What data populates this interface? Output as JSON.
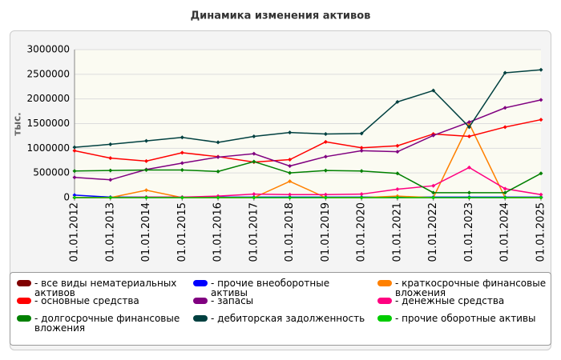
{
  "chart_data": {
    "type": "line",
    "title": "Динамика изменения активов",
    "y_label": "тыс.",
    "categories": [
      "01.01.2012",
      "01.01.2013",
      "01.01.2014",
      "01.01.2015",
      "01.01.2016",
      "01.01.2017",
      "01.01.2018",
      "01.01.2019",
      "01.01.2020",
      "01.01.2021",
      "01.01.2022",
      "01.01.2023",
      "01.01.2024",
      "01.01.2025"
    ],
    "ylim": [
      0,
      3000000
    ],
    "yticks": [
      0,
      500000,
      1000000,
      1500000,
      2000000,
      2500000,
      3000000
    ],
    "grid": true,
    "series": [
      {
        "name": "- все виды нематериальных активов",
        "color": "#800000",
        "values": [
          0,
          0,
          0,
          0,
          0,
          0,
          0,
          0,
          0,
          0,
          0,
          0,
          0,
          0
        ]
      },
      {
        "name": "- прочие внеоборотные активы",
        "color": "#0000ff",
        "values": [
          50000,
          10000,
          10000,
          10000,
          10000,
          10000,
          10000,
          10000,
          10000,
          10000,
          10000,
          10000,
          10000,
          10000
        ]
      },
      {
        "name": "- краткосрочные финансовые вложения",
        "color": "#ff8000",
        "values": [
          0,
          0,
          150000,
          0,
          0,
          0,
          330000,
          0,
          0,
          30000,
          0,
          1500000,
          0,
          0
        ]
      },
      {
        "name": "- основные средства",
        "color": "#ff0000",
        "values": [
          950000,
          800000,
          740000,
          910000,
          830000,
          720000,
          770000,
          1130000,
          1010000,
          1050000,
          1290000,
          1240000,
          1430000,
          1580000
        ]
      },
      {
        "name": "- запасы",
        "color": "#800080",
        "values": [
          410000,
          360000,
          570000,
          700000,
          820000,
          890000,
          640000,
          830000,
          950000,
          930000,
          1260000,
          1530000,
          1820000,
          1980000
        ]
      },
      {
        "name": "- денежные средства",
        "color": "#ff0080",
        "values": [
          0,
          0,
          10000,
          10000,
          30000,
          70000,
          60000,
          60000,
          70000,
          170000,
          240000,
          610000,
          180000,
          60000
        ]
      },
      {
        "name": "- долгосрочные финансовые вложения",
        "color": "#008000",
        "values": [
          540000,
          550000,
          560000,
          560000,
          530000,
          730000,
          500000,
          550000,
          540000,
          490000,
          100000,
          100000,
          100000,
          490000
        ]
      },
      {
        "name": "- дебиторская задолженность",
        "color": "#004040",
        "values": [
          1020000,
          1080000,
          1150000,
          1220000,
          1120000,
          1240000,
          1320000,
          1290000,
          1300000,
          1940000,
          2170000,
          1430000,
          2530000,
          2590000
        ]
      },
      {
        "name": "- прочие оборотные активы",
        "color": "#00cc00",
        "values": [
          0,
          0,
          0,
          0,
          0,
          0,
          0,
          0,
          0,
          0,
          0,
          0,
          0,
          0
        ]
      }
    ]
  }
}
